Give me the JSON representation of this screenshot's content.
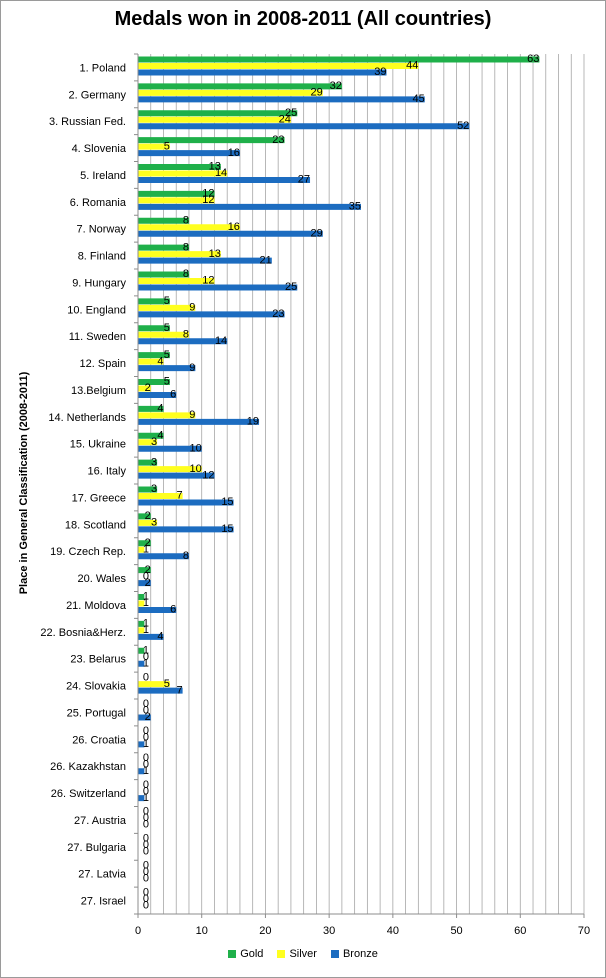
{
  "chart_data": {
    "type": "bar",
    "orientation": "horizontal",
    "title": "Medals won in 2008-2011 (All countries)",
    "ylabel": "Place  in General Classification (2008-2011)",
    "xlabel": "",
    "xlim": [
      0,
      70
    ],
    "xticks": [
      0,
      10,
      20,
      30,
      40,
      50,
      60,
      70
    ],
    "grid": "vertical",
    "legend": "bottom",
    "categories": [
      "1. Poland",
      "2. Germany",
      "3. Russian Fed.",
      "4. Slovenia",
      "5. Ireland",
      "6. Romania",
      "7. Norway",
      "8. Finland",
      "9. Hungary",
      "10. England",
      "11. Sweden",
      "12. Spain",
      "13.Belgium",
      "14. Netherlands",
      "15. Ukraine",
      "16. Italy",
      "17. Greece",
      "18. Scotland",
      "19. Czech Rep.",
      "20. Wales",
      "21. Moldova",
      "22. Bosnia&Herz.",
      "23. Belarus",
      "24. Slovakia",
      "25. Portugal",
      "26. Croatia",
      "26. Kazakhstan",
      "26. Switzerland",
      "27. Austria",
      "27. Bulgaria",
      "27. Latvia",
      "27. Israel"
    ],
    "series": [
      {
        "name": "Gold",
        "color": "#1fb04a",
        "values": [
          63,
          32,
          25,
          23,
          13,
          12,
          8,
          8,
          8,
          5,
          5,
          5,
          5,
          4,
          4,
          3,
          3,
          2,
          2,
          2,
          1,
          1,
          1,
          0,
          0,
          0,
          0,
          0,
          0,
          0,
          0,
          0
        ]
      },
      {
        "name": "Silver",
        "color": "#ffff1f",
        "values": [
          44,
          29,
          24,
          5,
          14,
          12,
          16,
          13,
          12,
          9,
          8,
          4,
          2,
          9,
          3,
          10,
          7,
          3,
          1,
          0,
          1,
          1,
          0,
          5,
          0,
          0,
          0,
          0,
          0,
          0,
          0,
          0
        ]
      },
      {
        "name": "Bronze",
        "color": "#1c6cc0",
        "values": [
          39,
          45,
          52,
          16,
          27,
          35,
          29,
          21,
          25,
          23,
          14,
          9,
          6,
          19,
          10,
          12,
          15,
          15,
          8,
          2,
          6,
          4,
          1,
          7,
          2,
          1,
          1,
          1,
          0,
          0,
          0,
          0
        ]
      }
    ]
  }
}
